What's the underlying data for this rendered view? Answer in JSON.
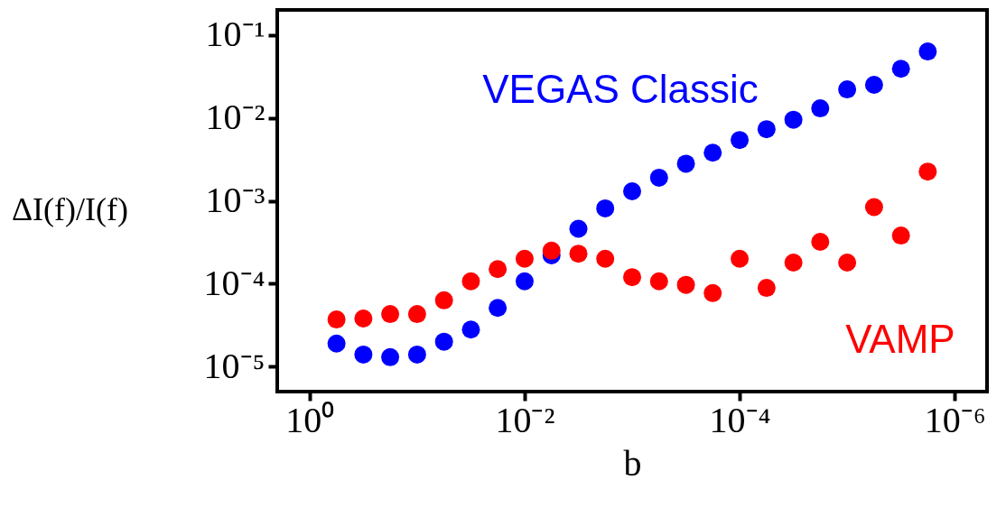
{
  "chart_data": {
    "type": "scatter",
    "xlabel": "b",
    "ylabel": "ΔI(f)/I(f)",
    "log": "xy",
    "grid": false,
    "legend": false,
    "marker": "circle",
    "x": [
      0.562,
      0.316,
      0.178,
      0.1,
      0.0562,
      0.0316,
      0.0178,
      0.01,
      0.00562,
      0.00316,
      0.00178,
      0.001,
      0.000562,
      0.000316,
      0.000178,
      0.0001,
      5.62e-05,
      3.16e-05,
      1.78e-05,
      1e-05,
      5.62e-06,
      3.16e-06,
      1.78e-06
    ],
    "xlim": [
      2,
      5e-07
    ],
    "xticks": [
      {
        "value": 1,
        "label": "10⁰"
      },
      {
        "value": 0.01,
        "label": "10⁻²"
      },
      {
        "value": 0.0001,
        "label": "10⁻⁴"
      },
      {
        "value": 1e-06,
        "label": "10⁻⁶"
      }
    ],
    "ylim": [
      5e-06,
      0.2
    ],
    "yticks": [
      {
        "value": 1e-05,
        "label": "10⁻⁵"
      },
      {
        "value": 0.0001,
        "label": "10⁻⁴"
      },
      {
        "value": 0.001,
        "label": "10⁻³"
      },
      {
        "value": 0.01,
        "label": "10⁻²"
      },
      {
        "value": 0.1,
        "label": "10⁻¹"
      }
    ],
    "series": [
      {
        "name": "VEGAS Classic",
        "color": "#0000ff",
        "values": [
          1.9e-05,
          1.4e-05,
          1.3e-05,
          1.4e-05,
          2e-05,
          2.8e-05,
          5.1e-05,
          0.000107,
          0.00022,
          0.00046,
          0.00081,
          0.0013,
          0.0019,
          0.0028,
          0.0038,
          0.0054,
          0.0073,
          0.0095,
          0.013,
          0.022,
          0.025,
          0.039,
          0.063
        ]
      },
      {
        "name": "VAMP",
        "color": "#ff0000",
        "values": [
          3.7e-05,
          3.8e-05,
          4.3e-05,
          4.3e-05,
          6.3e-05,
          0.000107,
          0.00015,
          0.0002,
          0.00025,
          0.00023,
          0.0002,
          0.00012,
          0.000107,
          9.7e-05,
          7.7e-05,
          0.0002,
          8.9e-05,
          0.00018,
          0.00032,
          0.00018,
          0.00084,
          0.00038,
          0.00225
        ]
      }
    ]
  }
}
